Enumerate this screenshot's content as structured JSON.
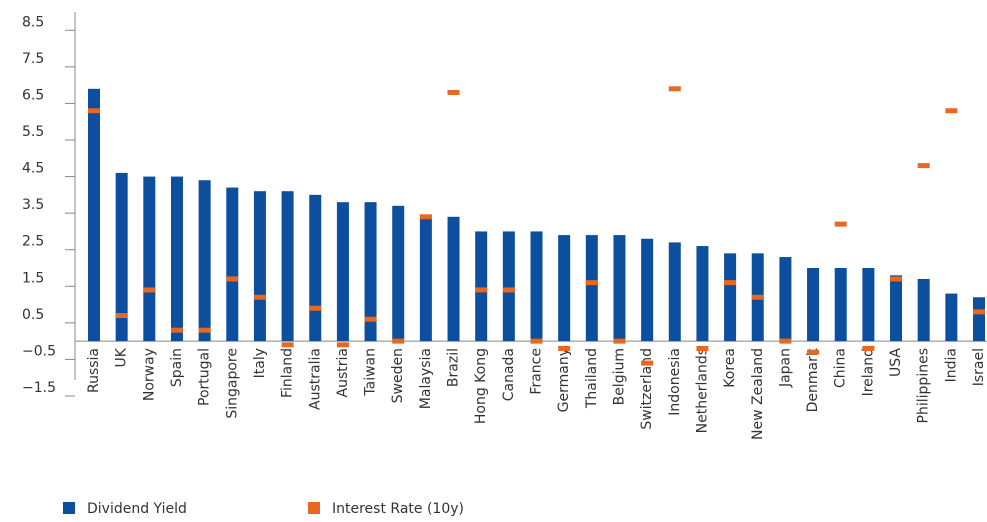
{
  "chart_data": {
    "type": "bar",
    "categories": [
      "Russia",
      "UK",
      "Norway",
      "Spain",
      "Portugal",
      "Singapore",
      "Italy",
      "Finland",
      "Australia",
      "Austria",
      "Taiwan",
      "Sweden",
      "Malaysia",
      "Brazil",
      "Hong Kong",
      "Canada",
      "France",
      "Germany",
      "Thailand",
      "Belgium",
      "Switzerland",
      "Indonesia",
      "Netherlands",
      "Korea",
      "New Zealand",
      "Japan",
      "Denmark",
      "China",
      "Ireland",
      "USA",
      "Philippines",
      "India",
      "Israel"
    ],
    "series": [
      {
        "name": "Dividend Yield",
        "color": "#0b4f9e",
        "mark": "bar",
        "values": [
          6.9,
          4.6,
          4.5,
          4.5,
          4.4,
          4.2,
          4.1,
          4.1,
          4.0,
          3.8,
          3.8,
          3.7,
          3.4,
          3.4,
          3.0,
          3.0,
          3.0,
          2.9,
          2.9,
          2.9,
          2.8,
          2.7,
          2.6,
          2.4,
          2.4,
          2.3,
          2.0,
          2.0,
          2.0,
          1.8,
          1.7,
          1.3,
          1.2
        ]
      },
      {
        "name": "Interest Rate (10y)",
        "color": "#e8681f",
        "mark": "dash",
        "values": [
          6.3,
          0.7,
          1.4,
          0.3,
          0.3,
          1.7,
          1.2,
          -0.1,
          0.9,
          -0.1,
          0.6,
          0.0,
          3.4,
          6.8,
          1.4,
          1.4,
          0.0,
          -0.2,
          1.6,
          0.0,
          -0.6,
          6.9,
          -0.2,
          1.6,
          1.2,
          0.0,
          -0.3,
          3.2,
          -0.2,
          1.7,
          4.8,
          6.3,
          0.8
        ]
      }
    ],
    "ylim": [
      -1.5,
      9
    ],
    "yticks": [
      8.5,
      7.5,
      6.5,
      5.5,
      4.5,
      3.5,
      2.5,
      1.5,
      0.5,
      {
        "value": -0.5,
        "label": "−0.5"
      },
      {
        "value": -1.5,
        "label": "−1.5"
      }
    ],
    "grid": false,
    "legend": "bottom"
  }
}
